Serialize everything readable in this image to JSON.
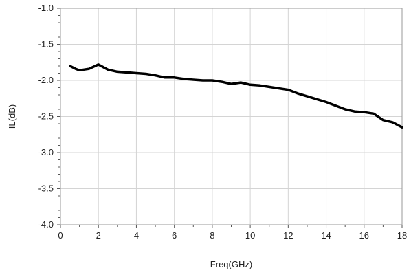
{
  "chart_data": {
    "type": "line",
    "title": "",
    "xlabel": "Freq(GHz)",
    "ylabel": "IL(dB)",
    "xlim": [
      0,
      18
    ],
    "ylim": [
      -4.0,
      -1.0
    ],
    "xticks": [
      0,
      2,
      4,
      6,
      8,
      10,
      12,
      14,
      16,
      18
    ],
    "xtick_labels": [
      "0",
      "2",
      "4",
      "6",
      "8",
      "10",
      "12",
      "14",
      "16",
      "18"
    ],
    "yticks": [
      -1.0,
      -1.5,
      -2.0,
      -2.5,
      -3.0,
      -3.5,
      -4.0
    ],
    "ytick_labels": [
      "-1.0",
      "-1.5",
      "-2.0",
      "-2.5",
      "-3.0",
      "-3.5",
      "-4.0"
    ],
    "grid": true,
    "legend": "none",
    "series": [
      {
        "color": "#000000",
        "x": [
          0.5,
          0.8,
          1.0,
          1.5,
          2.0,
          2.5,
          3.0,
          3.5,
          4.0,
          4.5,
          5.0,
          5.5,
          6.0,
          6.5,
          7.0,
          7.5,
          8.0,
          8.5,
          9.0,
          9.5,
          10.0,
          10.5,
          11.0,
          11.5,
          12.0,
          12.5,
          13.0,
          13.5,
          14.0,
          14.5,
          15.0,
          15.5,
          16.0,
          16.5,
          17.0,
          17.5,
          18.0
        ],
        "y": [
          -1.8,
          -1.84,
          -1.86,
          -1.84,
          -1.78,
          -1.85,
          -1.88,
          -1.89,
          -1.9,
          -1.91,
          -1.93,
          -1.96,
          -1.96,
          -1.98,
          -1.99,
          -2.0,
          -2.0,
          -2.02,
          -2.05,
          -2.03,
          -2.06,
          -2.07,
          -2.09,
          -2.11,
          -2.13,
          -2.18,
          -2.22,
          -2.26,
          -2.3,
          -2.35,
          -2.4,
          -2.43,
          -2.44,
          -2.46,
          -2.55,
          -2.58,
          -2.65
        ]
      }
    ]
  }
}
